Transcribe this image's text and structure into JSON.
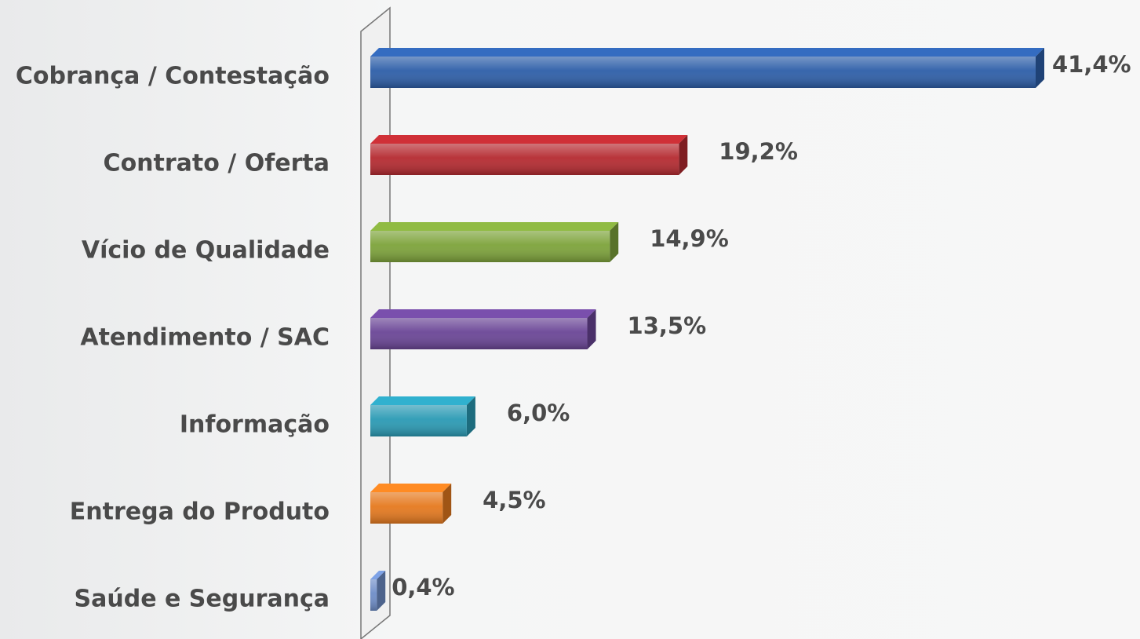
{
  "chart_data": {
    "type": "bar",
    "orientation": "horizontal",
    "categories": [
      "Cobrança / Contestação",
      "Contrato / Oferta",
      "Vício de Qualidade",
      "Atendimento / SAC",
      "Informação",
      "Entrega do Produto",
      "Saúde e Segurança"
    ],
    "values": [
      41.4,
      19.2,
      14.9,
      13.5,
      6.0,
      4.5,
      0.4
    ],
    "value_labels": [
      "41,4%",
      "19,2%",
      "14,9%",
      "13,5%",
      "6,0%",
      "4,5%",
      "0,4%"
    ],
    "colors": [
      "#2d5ea8",
      "#b52a30",
      "#7da33a",
      "#6a4596",
      "#2a9ab4",
      "#e5791e",
      "#6e8dc8"
    ]
  }
}
